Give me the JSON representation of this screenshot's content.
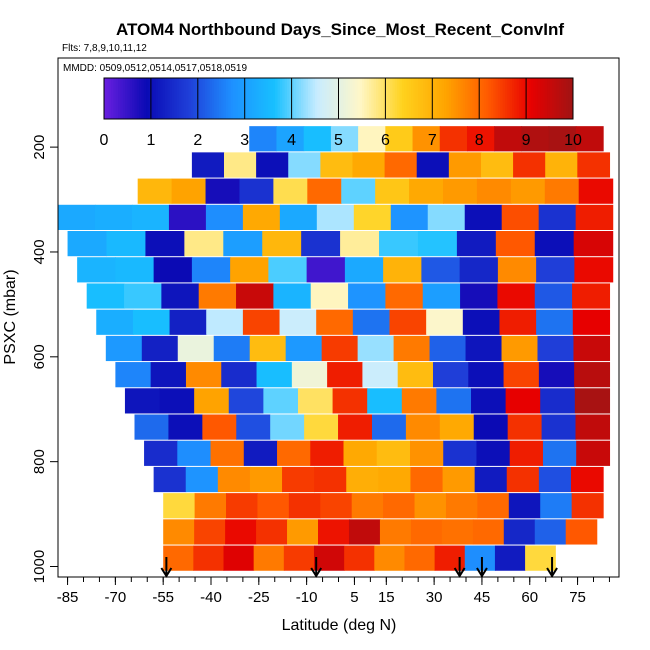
{
  "chart_data": {
    "type": "heatmap",
    "title": "ATOM4 Northbound Days_Since_Most_Recent_ConvInf",
    "subtitle_flights": "Flts: 7,8,9,10,11,12",
    "subtitle_dates": "MMDD: 0509,0512,0514,0517,0518,0519",
    "xlabel": "Latitude (deg N)",
    "ylabel": "PSXC (mbar)",
    "xlim": [
      -88,
      88
    ],
    "ylim": [
      1020,
      30
    ],
    "x_ticks": [
      -85,
      -70,
      -55,
      -40,
      -25,
      -10,
      5,
      15,
      30,
      45,
      60,
      75
    ],
    "x_tick_labels": [
      "-85",
      "-70",
      "-55",
      "-40",
      "-25",
      "-10",
      "5",
      "15",
      "30",
      "45",
      "60",
      "75"
    ],
    "y_ticks": [
      200,
      400,
      600,
      800,
      1000
    ],
    "y_tick_labels": [
      "200",
      "400",
      "600",
      "800",
      "1000"
    ],
    "colorbar": {
      "min": 0,
      "max": 10,
      "ticks": [
        0,
        1,
        2,
        3,
        4,
        5,
        6,
        7,
        8,
        9,
        10
      ],
      "tick_labels": [
        "0",
        "1",
        "2",
        "3",
        "4",
        "5",
        "6",
        "7",
        "8",
        "9",
        "10"
      ],
      "colors": [
        "#6a1fe0",
        "#0a0ab4",
        "#1f3fd9",
        "#1e90ff",
        "#18c0ff",
        "#c8ecff",
        "#fff7c8",
        "#ffd21e",
        "#ffa500",
        "#ff5a00",
        "#e80000",
        "#a01414"
      ]
    },
    "pressure_levels": [
      185,
      235,
      285,
      335,
      385,
      435,
      485,
      535,
      585,
      635,
      685,
      735,
      785,
      835,
      885,
      935,
      985
    ],
    "rows": [
      {
        "p": 185,
        "lat_start": -28,
        "lat_end": 83,
        "values": [
          2.6,
          3.1,
          3.6,
          4.2,
          5.5,
          6.5,
          7.5,
          8.6,
          8.9,
          9.6,
          9.8,
          9.9,
          9.6
        ]
      },
      {
        "p": 235,
        "lat_start": -46,
        "lat_end": 85,
        "values": [
          1.2,
          5.8,
          1.0,
          4.2,
          6.8,
          7.2,
          8.0,
          1.0,
          7.4,
          6.8,
          8.6,
          7.0,
          8.6
        ]
      },
      {
        "p": 285,
        "lat_start": -63,
        "lat_end": 86,
        "values": [
          6.9,
          7.3,
          0.8,
          1.6,
          6.1,
          8.0,
          4.0,
          6.6,
          7.2,
          7.4,
          7.6,
          7.4,
          7.8,
          9.0
        ]
      },
      {
        "p": 335,
        "lat_start": -88,
        "lat_end": 86,
        "values": [
          3.2,
          3.3,
          3.4,
          0.6,
          2.7,
          7.2,
          3.2,
          4.4,
          6.3,
          2.8,
          4.2,
          1.0,
          8.3,
          1.6,
          8.8
        ]
      },
      {
        "p": 385,
        "lat_start": -85,
        "lat_end": 86,
        "values": [
          3.2,
          3.5,
          1.0,
          5.8,
          3.0,
          6.9,
          1.6,
          5.7,
          3.8,
          3.7,
          1.2,
          8.2,
          1.0,
          9.3
        ]
      },
      {
        "p": 435,
        "lat_start": -82,
        "lat_end": 86,
        "values": [
          3.4,
          3.5,
          0.9,
          2.6,
          7.3,
          3.9,
          0.4,
          3.2,
          7.0,
          2.1,
          1.4,
          7.6,
          1.8,
          9.0
        ]
      },
      {
        "p": 485,
        "lat_start": -79,
        "lat_end": 85,
        "values": [
          3.6,
          3.8,
          1.1,
          7.8,
          9.5,
          3.4,
          5.5,
          2.8,
          8.0,
          3.0,
          0.8,
          9.0,
          2.1,
          8.8
        ]
      },
      {
        "p": 535,
        "lat_start": -76,
        "lat_end": 85,
        "values": [
          3.3,
          3.6,
          1.3,
          4.5,
          8.4,
          4.6,
          8.0,
          2.4,
          8.4,
          5.4,
          1.0,
          8.8,
          2.4,
          9.1
        ]
      },
      {
        "p": 585,
        "lat_start": -73,
        "lat_end": 85,
        "values": [
          2.9,
          1.3,
          5.1,
          2.5,
          6.8,
          2.9,
          8.5,
          4.3,
          7.8,
          2.2,
          1.1,
          7.4,
          1.8,
          9.5
        ]
      },
      {
        "p": 635,
        "lat_start": -70,
        "lat_end": 85,
        "values": [
          2.6,
          1.1,
          7.6,
          1.5,
          3.6,
          5.2,
          8.8,
          4.6,
          6.8,
          1.8,
          1.0,
          8.4,
          0.8,
          9.7
        ]
      },
      {
        "p": 685,
        "lat_start": -67,
        "lat_end": 85,
        "values": [
          1.1,
          1.0,
          7.3,
          1.9,
          4.0,
          6.0,
          8.6,
          3.6,
          7.8,
          2.4,
          1.0,
          9.1,
          1.5,
          9.9
        ]
      },
      {
        "p": 735,
        "lat_start": -64,
        "lat_end": 85,
        "values": [
          2.3,
          1.0,
          8.2,
          2.0,
          4.1,
          6.2,
          8.8,
          2.3,
          7.6,
          7.2,
          0.9,
          8.6,
          1.6,
          9.6
        ]
      },
      {
        "p": 785,
        "lat_start": -61,
        "lat_end": 85,
        "values": [
          1.5,
          2.7,
          7.9,
          1.2,
          8.0,
          8.8,
          7.2,
          6.8,
          7.5,
          1.6,
          1.0,
          8.8,
          2.4,
          9.5
        ]
      },
      {
        "p": 835,
        "lat_start": -58,
        "lat_end": 83,
        "values": [
          1.6,
          2.8,
          7.6,
          7.4,
          8.5,
          8.6,
          7.1,
          7.2,
          8.0,
          7.4,
          1.2,
          8.6,
          2.0,
          9.0
        ]
      },
      {
        "p": 885,
        "lat_start": -55,
        "lat_end": 83,
        "values": [
          6.2,
          7.8,
          8.5,
          8.2,
          8.6,
          8.4,
          7.8,
          8.0,
          7.5,
          7.8,
          8.0,
          1.1,
          2.5,
          8.6
        ]
      },
      {
        "p": 935,
        "lat_start": -55,
        "lat_end": 81,
        "values": [
          7.6,
          8.4,
          9.0,
          8.6,
          7.4,
          8.9,
          9.6,
          7.8,
          8.0,
          7.9,
          8.0,
          1.4,
          2.2,
          8.2
        ]
      },
      {
        "p": 985,
        "lat_start": -55,
        "lat_end": 68,
        "values": [
          8.0,
          8.6,
          9.2,
          7.8,
          8.5,
          9.4,
          8.6,
          7.6,
          8.0,
          8.8,
          2.7,
          1.2,
          6.2
        ]
      }
    ],
    "arrows_lat": [
      -54,
      -7,
      38,
      45,
      67
    ]
  }
}
